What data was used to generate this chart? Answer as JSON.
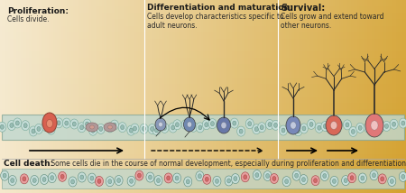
{
  "bg_left_color": "#f5ead8",
  "bg_right_color": "#d4a030",
  "divider_color": "#ffffff",
  "cell_band_color": "#c8ddd5",
  "cell_band_stroke": "#8ab0a0",
  "neuron_blue": "#7090b8",
  "neuron_pink": "#d86858",
  "neuron_light_pink": "#e89080",
  "arrow_color": "#1a1a1a",
  "text_dark": "#2a2a2a",
  "title_color": "#1a1a1a",
  "section1_title": "Proliferation:",
  "section1_body": "Cells divide.",
  "section2_title": "Differentiation and maturation:",
  "section2_body": "Cells develop characteristics specific to\nadult neurons.",
  "section3_title": "Survival:",
  "section3_body": "Cells grow and extend toward\nother neurons.",
  "bottom_title": "Cell death:",
  "bottom_body": " Some cells die in the course of normal development, especially during proliferation and differentiation.",
  "figwidth": 4.5,
  "figheight": 2.14,
  "dpi": 100
}
